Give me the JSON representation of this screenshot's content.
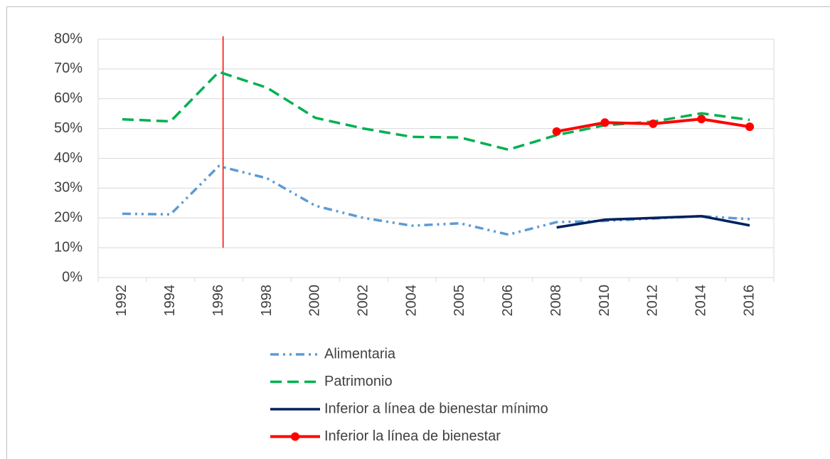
{
  "chart_data": {
    "type": "line",
    "categories": [
      "1992",
      "1994",
      "1996",
      "1998",
      "2000",
      "2002",
      "2004",
      "2005",
      "2006",
      "2008",
      "2010",
      "2012",
      "2014",
      "2016"
    ],
    "series": [
      {
        "name": "Alimentaria",
        "color": "#5b9bd5",
        "dash": "dash-dot-dot",
        "markers": false,
        "values": [
          21.4,
          21.2,
          37.4,
          33.3,
          24.1,
          20.0,
          17.4,
          18.2,
          14.4,
          18.6,
          19.0,
          19.8,
          20.6,
          19.6
        ]
      },
      {
        "name": "Patrimonio",
        "color": "#00b050",
        "dash": "dash",
        "markers": false,
        "values": [
          53.1,
          52.4,
          69.0,
          63.7,
          53.6,
          50.0,
          47.2,
          47.0,
          42.9,
          47.8,
          51.1,
          52.3,
          55.1,
          52.9
        ]
      },
      {
        "name": "Inferior a línea de bienestar mínimo",
        "color": "#002060",
        "dash": "solid",
        "markers": false,
        "values": [
          null,
          null,
          null,
          null,
          null,
          null,
          null,
          null,
          null,
          16.8,
          19.4,
          20.0,
          20.6,
          17.5
        ]
      },
      {
        "name": "Inferior la línea de bienestar",
        "color": "#ff0000",
        "dash": "solid",
        "markers": true,
        "values": [
          null,
          null,
          null,
          null,
          null,
          null,
          null,
          null,
          null,
          49.0,
          52.0,
          51.6,
          53.2,
          50.6
        ]
      }
    ],
    "ylim": [
      0,
      80
    ],
    "yticks": [
      {
        "value": 0,
        "label": "0%"
      },
      {
        "value": 10,
        "label": "10%"
      },
      {
        "value": 20,
        "label": "20%"
      },
      {
        "value": 30,
        "label": "30%"
      },
      {
        "value": 40,
        "label": "40%"
      },
      {
        "value": 50,
        "label": "50%"
      },
      {
        "value": 60,
        "label": "60%"
      },
      {
        "value": 70,
        "label": "70%"
      },
      {
        "value": 80,
        "label": "80%"
      }
    ],
    "grid": true,
    "reference_line": {
      "x": "1996",
      "color": "#ff0000",
      "from": 10,
      "to": 81
    },
    "legend": "bottom"
  }
}
